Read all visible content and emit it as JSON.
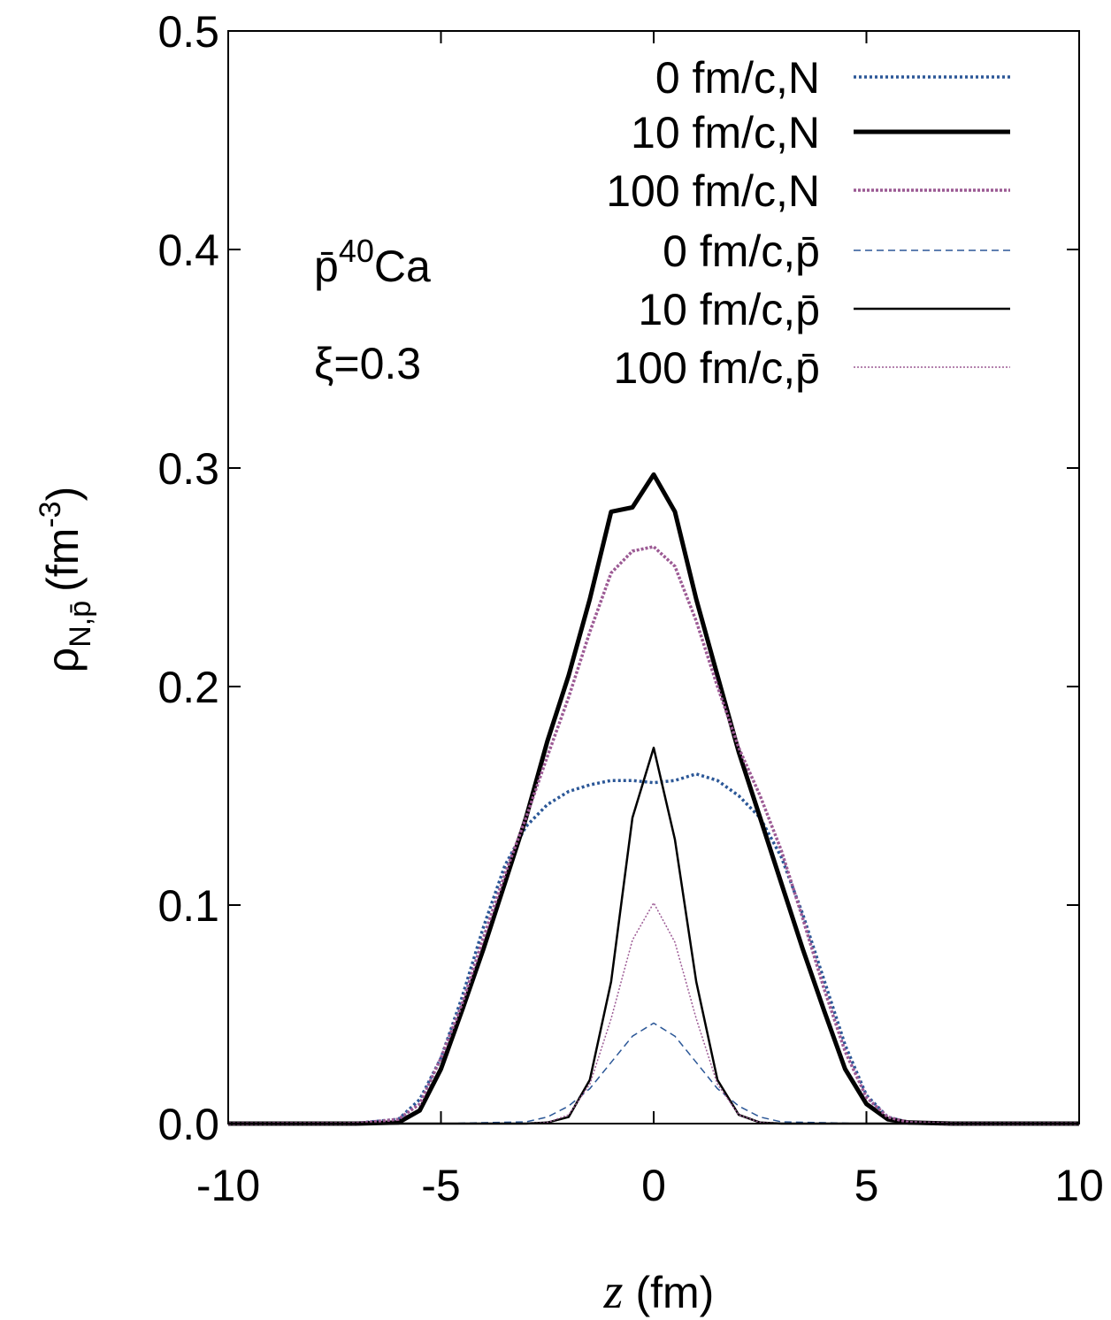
{
  "chart_data": {
    "type": "line",
    "title": "",
    "xlabel": {
      "variable": "z",
      "unit": "(fm)"
    },
    "ylabel": {
      "symbol": "ρ",
      "subscript": "N,p̄",
      "unit": "(fm",
      "exponent": "-3",
      "close": ")"
    },
    "xlim": [
      -10,
      10
    ],
    "ylim": [
      0,
      0.5
    ],
    "xticks": [
      {
        "value": -10,
        "label": "-10"
      },
      {
        "value": -5,
        "label": "-5"
      },
      {
        "value": 0,
        "label": "0"
      },
      {
        "value": 5,
        "label": "5"
      },
      {
        "value": 10,
        "label": "10"
      }
    ],
    "yticks": [
      {
        "value": 0,
        "label": "0.0"
      },
      {
        "value": 0.1,
        "label": "0.1"
      },
      {
        "value": 0.2,
        "label": "0.2"
      },
      {
        "value": 0.3,
        "label": "0.3"
      },
      {
        "value": 0.4,
        "label": "0.4"
      },
      {
        "value": 0.5,
        "label": "0.5"
      }
    ],
    "annotations": {
      "system": {
        "prefix": "p̄",
        "mass": "40",
        "element": "Ca"
      },
      "xi": "ξ=0.3"
    },
    "legend_position": "top-right",
    "series": [
      {
        "name": "0 fm/c,N",
        "color": "#2b5797",
        "width": 3.5,
        "dash": "3,3",
        "x": [
          -10,
          -7,
          -6,
          -5.5,
          -5,
          -4.5,
          -4,
          -3.5,
          -3,
          -2.5,
          -2,
          -1.5,
          -1,
          -0.5,
          0,
          0.5,
          1,
          1.5,
          2,
          2.5,
          3,
          3.5,
          4,
          4.5,
          5,
          5.5,
          6,
          7,
          10
        ],
        "y": [
          0,
          0.0002,
          0.002,
          0.011,
          0.03,
          0.058,
          0.09,
          0.118,
          0.136,
          0.146,
          0.152,
          0.155,
          0.157,
          0.157,
          0.156,
          0.157,
          0.16,
          0.157,
          0.15,
          0.14,
          0.122,
          0.096,
          0.066,
          0.036,
          0.013,
          0.003,
          0.0005,
          0,
          0
        ]
      },
      {
        "name": "10 fm/c,N",
        "color": "#000000",
        "width": 5,
        "dash": "",
        "x": [
          -10,
          -7,
          -6,
          -5.5,
          -5,
          -4.5,
          -4,
          -3.5,
          -3,
          -2.5,
          -2,
          -1.5,
          -1,
          -0.5,
          0,
          0.5,
          1,
          1.5,
          2,
          2.5,
          3,
          3.5,
          4,
          4.5,
          5,
          5.5,
          6,
          7,
          10
        ],
        "y": [
          0,
          0,
          0.0005,
          0.006,
          0.025,
          0.052,
          0.08,
          0.11,
          0.14,
          0.175,
          0.205,
          0.24,
          0.28,
          0.282,
          0.297,
          0.28,
          0.24,
          0.205,
          0.17,
          0.14,
          0.11,
          0.08,
          0.052,
          0.025,
          0.009,
          0.002,
          0.0005,
          0,
          0
        ]
      },
      {
        "name": "100 fm/c,N",
        "color": "#9c5a94",
        "width": 3.5,
        "dash": "3,2",
        "x": [
          -10,
          -7,
          -6,
          -5.5,
          -5,
          -4.5,
          -4,
          -3.5,
          -3,
          -2.5,
          -2,
          -1.5,
          -1,
          -0.5,
          0,
          0.5,
          1,
          1.5,
          2,
          2.5,
          3,
          3.5,
          4,
          4.5,
          5,
          5.5,
          6,
          7,
          10
        ],
        "y": [
          0,
          0.0001,
          0.002,
          0.009,
          0.03,
          0.055,
          0.085,
          0.114,
          0.14,
          0.168,
          0.195,
          0.225,
          0.252,
          0.262,
          0.264,
          0.255,
          0.23,
          0.2,
          0.172,
          0.15,
          0.125,
          0.094,
          0.062,
          0.033,
          0.012,
          0.003,
          0.0005,
          0,
          0
        ]
      },
      {
        "name": "0 fm/c,p̄",
        "color": "#2b5797",
        "width": 1.5,
        "dash": "8,5",
        "x": [
          -10,
          -5,
          -3,
          -2.5,
          -2,
          -1.5,
          -1,
          -0.5,
          0,
          0.5,
          1,
          1.5,
          2,
          2.5,
          3,
          5,
          10
        ],
        "y": [
          0,
          0,
          0.0008,
          0.003,
          0.008,
          0.016,
          0.028,
          0.04,
          0.046,
          0.04,
          0.028,
          0.016,
          0.008,
          0.003,
          0.0008,
          0,
          0
        ]
      },
      {
        "name": "10 fm/c,p̄",
        "color": "#000000",
        "width": 2.5,
        "dash": "",
        "x": [
          -10,
          -5,
          -3,
          -2.5,
          -2,
          -1.5,
          -1,
          -0.5,
          0,
          0.5,
          1,
          1.5,
          2,
          2.5,
          3,
          5,
          10
        ],
        "y": [
          0,
          0,
          0,
          0.0005,
          0.003,
          0.02,
          0.065,
          0.14,
          0.172,
          0.13,
          0.065,
          0.02,
          0.004,
          0.0005,
          0,
          0,
          0
        ]
      },
      {
        "name": "100 fm/c,p̄",
        "color": "#9c5a94",
        "width": 1.5,
        "dash": "2,2",
        "x": [
          -10,
          -5,
          -3,
          -2.5,
          -2,
          -1.5,
          -1,
          -0.5,
          0,
          0.5,
          1,
          1.5,
          2,
          2.5,
          3,
          5,
          10
        ],
        "y": [
          0,
          0,
          0,
          0.0005,
          0.004,
          0.018,
          0.048,
          0.084,
          0.101,
          0.083,
          0.048,
          0.018,
          0.004,
          0.0005,
          0,
          0,
          0
        ]
      }
    ]
  }
}
